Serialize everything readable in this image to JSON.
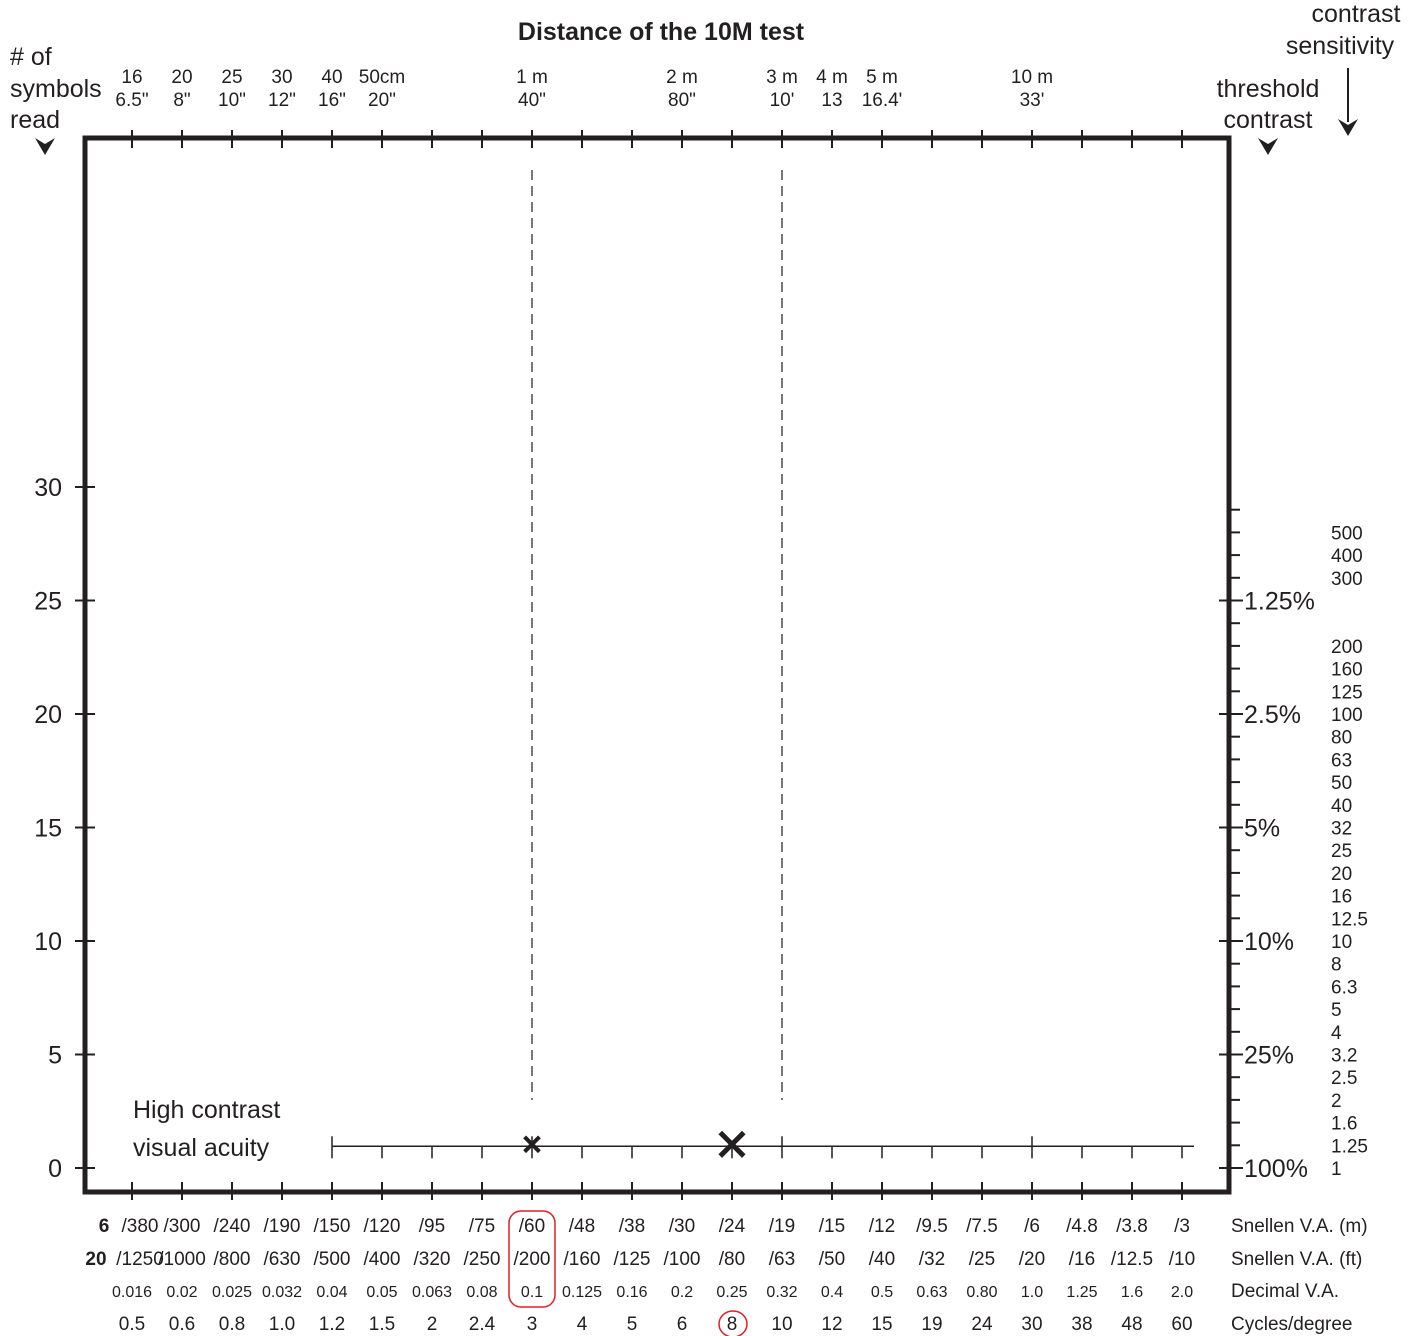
{
  "chart_data": {
    "type": "scatter",
    "title": "Distance of the 10M test",
    "left_axis": {
      "label_lines": [
        "# of",
        "symbols",
        "read"
      ],
      "ticks": [
        0,
        5,
        10,
        15,
        20,
        25,
        30
      ],
      "ylim": [
        0,
        34
      ]
    },
    "right_axis_threshold": {
      "label_lines": [
        "threshold",
        "contrast"
      ],
      "ticks": [
        {
          "label": "100%",
          "y": 0
        },
        {
          "label": "25%",
          "y": 5
        },
        {
          "label": "10%",
          "y": 10
        },
        {
          "label": "5%",
          "y": 15
        },
        {
          "label": "2.5%",
          "y": 20
        },
        {
          "label": "1.25%",
          "y": 25
        }
      ]
    },
    "right_axis_sensitivity": {
      "label_lines": [
        "contrast",
        "sensitivity"
      ],
      "ticks": [
        "1",
        "1.25",
        "1.6",
        "2",
        "2.5",
        "3.2",
        "4",
        "5",
        "6.3",
        "8",
        "10",
        "12.5",
        "16",
        "20",
        "25",
        "32",
        "40",
        "50",
        "63",
        "80",
        "100",
        "125",
        "160",
        "200",
        "300",
        "400",
        "500"
      ],
      "y_values": [
        0,
        1,
        2,
        3,
        4,
        5,
        6,
        7,
        8,
        9,
        10,
        11,
        12,
        13,
        14,
        15,
        16,
        17,
        18,
        19,
        20,
        21,
        22,
        23,
        26,
        27,
        28
      ]
    },
    "top_axis": {
      "label": "Distance of the 10M test",
      "ticks": [
        {
          "i": 0,
          "metric": "16",
          "imperial": "6.5\""
        },
        {
          "i": 1,
          "metric": "20",
          "imperial": "8\""
        },
        {
          "i": 2,
          "metric": "25",
          "imperial": "10\""
        },
        {
          "i": 3,
          "metric": "30",
          "imperial": "12\""
        },
        {
          "i": 4,
          "metric": "40",
          "imperial": "16\""
        },
        {
          "i": 5,
          "metric": "50cm",
          "imperial": "20\""
        },
        {
          "i": 8,
          "metric": "1 m",
          "imperial": "40\""
        },
        {
          "i": 11,
          "metric": "2 m",
          "imperial": "80\""
        },
        {
          "i": 13,
          "metric": "3 m",
          "imperial": "10'"
        },
        {
          "i": 14,
          "metric": "4 m",
          "imperial": "13"
        },
        {
          "i": 15,
          "metric": "5 m",
          "imperial": "16.4'"
        },
        {
          "i": 18,
          "metric": "10 m",
          "imperial": "33'"
        }
      ]
    },
    "bottom_axes": {
      "snellen_m_prefix": "6",
      "snellen_m": [
        "/380",
        "/300",
        "/240",
        "/190",
        "/150",
        "/120",
        "/95",
        "/75",
        "/60",
        "/48",
        "/38",
        "/30",
        "/24",
        "/19",
        "/15",
        "/12",
        "/9.5",
        "/7.5",
        "/6",
        "/4.8",
        "/3.8",
        "/3"
      ],
      "snellen_ft_prefix": "20",
      "snellen_ft": [
        "/1250",
        "/1000",
        "/800",
        "/630",
        "/500",
        "/400",
        "/320",
        "/250",
        "/200",
        "/160",
        "/125",
        "/100",
        "/80",
        "/63",
        "/50",
        "/40",
        "/32",
        "/25",
        "/20",
        "/16",
        "/12.5",
        "/10"
      ],
      "decimal_va": [
        "0.016",
        "0.02",
        "0.025",
        "0.032",
        "0.04",
        "0.05",
        "0.063",
        "0.08",
        "0.1",
        "0.125",
        "0.16",
        "0.2",
        "0.25",
        "0.32",
        "0.4",
        "0.5",
        "0.63",
        "0.80",
        "1.0",
        "1.25",
        "1.6",
        "2.0"
      ],
      "cycles_per_degree": [
        "0.5",
        "0.6",
        "0.8",
        "1.0",
        "1.2",
        "1.5",
        "2",
        "2.4",
        "3",
        "4",
        "5",
        "6",
        "8",
        "10",
        "12",
        "15",
        "19",
        "24",
        "30",
        "38",
        "48",
        "60"
      ],
      "row_labels": [
        "Snellen V.A. (m)",
        "Snellen V.A. (ft)",
        "Decimal V.A.",
        "Cycles/degree"
      ]
    },
    "high_contrast_line": {
      "label_lines": [
        "High contrast",
        "visual acuity"
      ],
      "y": 1,
      "from_index": 4,
      "to_index": 21
    },
    "dashed_reference_lines": [
      {
        "column_index": 8,
        "label": "1 m"
      },
      {
        "column_index": 13,
        "label": "3 m"
      }
    ],
    "markers": [
      {
        "column_index": 8,
        "decimal_va": "0.1",
        "y": 1,
        "size": "small"
      },
      {
        "column_index": 12,
        "decimal_va": "0.25",
        "y": 1,
        "size": "large"
      }
    ],
    "highlights": [
      {
        "type": "rounded-rect",
        "column_index": 8,
        "rows": [
          "Snellen V.A. (m)",
          "Snellen V.A. (ft)",
          "Decimal V.A."
        ],
        "color": "#e31e24"
      },
      {
        "type": "ellipse",
        "column_index": 12,
        "row": "Cycles/degree",
        "color": "#e31e24"
      }
    ],
    "grid": false,
    "legend": "none"
  }
}
